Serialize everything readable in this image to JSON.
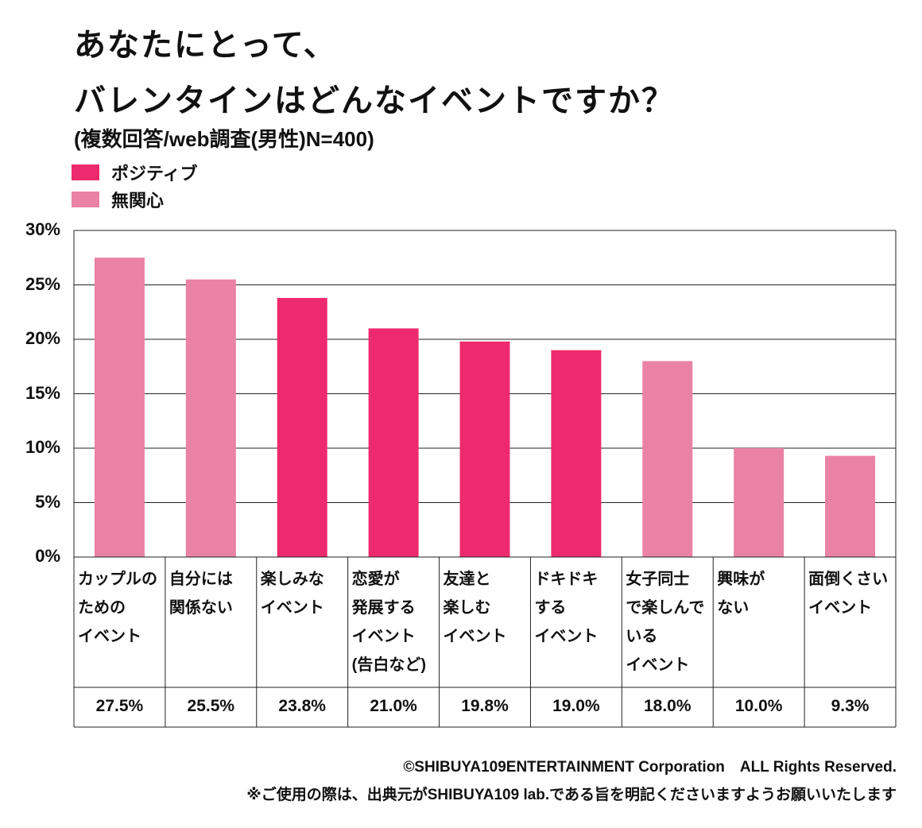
{
  "chart_data": {
    "type": "bar",
    "title": "あなたにとって、\nバレンタインはどんなイベントですか？",
    "subtitle": "(複数回答/web調査(男性)N=400)",
    "categories": [
      "カップルの\nための\nイベント",
      "自分には\n関係ない",
      "楽しみな\nイベント",
      "恋愛が\n発展する\nイベント\n(告白など)",
      "友達と\n楽しむ\nイベント",
      "ドキドキ\nする\nイベント",
      "女子同士\nで楽しんで\nいる\nイベント",
      "興味が\nない",
      "面倒くさい\nイベント"
    ],
    "series": [
      {
        "name": "ポジティブ",
        "color": "#ee2a6e",
        "values": [
          null,
          null,
          23.8,
          21.0,
          19.8,
          19.0,
          null,
          null,
          null
        ],
        "value_labels": [
          null,
          null,
          "23.8%",
          "21.0%",
          "19.8%",
          "19.0%",
          null,
          null,
          null
        ]
      },
      {
        "name": "無関心",
        "color": "#ea82a6",
        "values": [
          27.5,
          25.5,
          null,
          null,
          null,
          null,
          18.0,
          10.0,
          9.3
        ],
        "value_labels": [
          "27.5%",
          "25.5%",
          null,
          null,
          null,
          null,
          "18.0%",
          "10.0%",
          "9.3%"
        ]
      }
    ],
    "ylim": [
      0,
      30
    ],
    "yticks": [
      {
        "value": 0,
        "label": "0%"
      },
      {
        "value": 5,
        "label": "5%"
      },
      {
        "value": 10,
        "label": "10%"
      },
      {
        "value": 15,
        "label": "15%"
      },
      {
        "value": 20,
        "label": "20%"
      },
      {
        "value": 25,
        "label": "25%"
      },
      {
        "value": 30,
        "label": "30%"
      }
    ],
    "grid": true,
    "legend": "top-left",
    "footer": [
      "©SHIBUYA109ENTERTAINMENT Corporation　ALL Rights Reserved.",
      "※ご使用の際は、出典元がSHIBUYA109 lab.である旨を明記くださいますようお願いいたします"
    ]
  }
}
